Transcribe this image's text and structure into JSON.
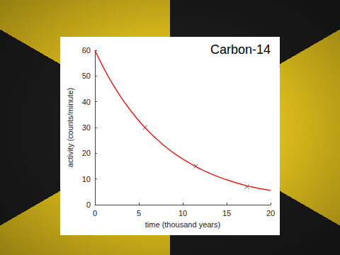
{
  "chart_data": {
    "type": "line",
    "title": "Carbon-14",
    "x_label": "time (thousand years)",
    "y_label": "activity (counts/minute)",
    "xlim": [
      0,
      20
    ],
    "xticks": [
      0,
      5,
      10,
      15,
      20
    ],
    "ylim": [
      0,
      60
    ],
    "yticks": [
      0,
      10,
      20,
      30,
      40,
      50,
      60
    ],
    "grid": false,
    "series": [
      {
        "type": "line",
        "color": "#e0201b",
        "marker": "none",
        "line_style": "solid",
        "x": [
          0,
          1,
          2,
          3,
          4,
          5,
          6,
          7,
          8,
          9,
          10,
          11,
          12,
          13,
          14,
          15,
          16,
          17,
          18,
          19,
          20
        ],
        "values": [
          60,
          53.1,
          47,
          41.6,
          36.9,
          32.6,
          28.9,
          25.6,
          22.6,
          20,
          17.8,
          15.7,
          13.9,
          12.3,
          10.9,
          9.7,
          8.6,
          7.6,
          6.8,
          6.1,
          5.6
        ]
      },
      {
        "type": "scatter",
        "color": "#333333",
        "marker": "x",
        "x": [
          5.7,
          11.5,
          17.3
        ],
        "values": [
          30,
          15,
          7
        ]
      }
    ]
  }
}
